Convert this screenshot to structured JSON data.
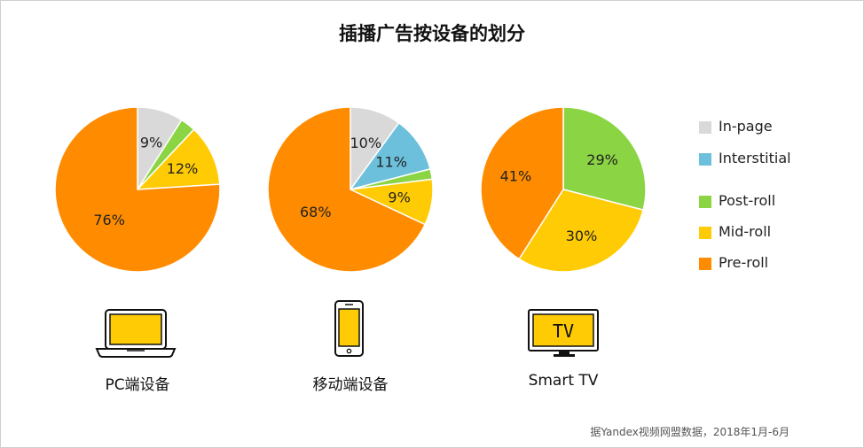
{
  "title": "插播广告按设备的划分",
  "source": "据Yandex视频网盟数据，2018年1月-6月",
  "colors": {
    "In-page": "#d9d9d9",
    "Interstitial": "#6cc0dc",
    "Post-roll": "#8bd444",
    "Mid-roll": "#ffcb05",
    "Pre-roll": "#ff8c00"
  },
  "legend": [
    {
      "key": "In-page",
      "label": "In-page"
    },
    {
      "key": "Interstitial",
      "label": "Interstitial"
    },
    {
      "key": "Post-roll",
      "label": "Post-roll"
    },
    {
      "key": "Mid-roll",
      "label": "Mid-roll"
    },
    {
      "key": "Pre-roll",
      "label": "Pre-roll"
    }
  ],
  "devices": [
    {
      "label": "PC端设备",
      "icon": "laptop-icon"
    },
    {
      "label": "移动端设备",
      "icon": "smartphone-icon"
    },
    {
      "label": "Smart TV",
      "icon": "tv-icon",
      "icon_text": "TV"
    }
  ],
  "chart_data": [
    {
      "type": "pie",
      "slices": [
        {
          "category": "In-page",
          "value": 9,
          "label": "9%"
        },
        {
          "category": "Post-roll",
          "value": 3,
          "label": ""
        },
        {
          "category": "Mid-roll",
          "value": 12,
          "label": "12%"
        },
        {
          "category": "Pre-roll",
          "value": 76,
          "label": "76%"
        }
      ]
    },
    {
      "type": "pie",
      "slices": [
        {
          "category": "In-page",
          "value": 10,
          "label": "10%"
        },
        {
          "category": "Interstitial",
          "value": 11,
          "label": "11%"
        },
        {
          "category": "Post-roll",
          "value": 2,
          "label": ""
        },
        {
          "category": "Mid-roll",
          "value": 9,
          "label": "9%"
        },
        {
          "category": "Pre-roll",
          "value": 68,
          "label": "68%"
        }
      ]
    },
    {
      "type": "pie",
      "slices": [
        {
          "category": "Post-roll",
          "value": 29,
          "label": "29%"
        },
        {
          "category": "Mid-roll",
          "value": 30,
          "label": "30%"
        },
        {
          "category": "Pre-roll",
          "value": 41,
          "label": "41%"
        }
      ]
    }
  ]
}
